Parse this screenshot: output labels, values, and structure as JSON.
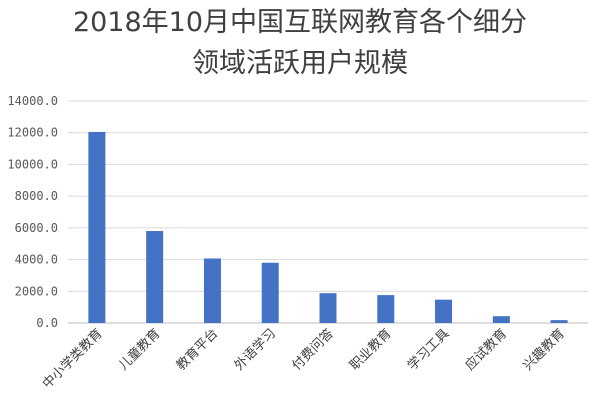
{
  "chart_data": {
    "type": "bar",
    "title_line1": "2018年10月中国互联网教育各个细分",
    "title_line2": "领域活跃用户规模",
    "categories": [
      "中小学类教育",
      "儿童教育",
      "教育平台",
      "外语学习",
      "付费问答",
      "职业教育",
      "学习工具",
      "应试教育",
      "兴趣教育"
    ],
    "values": [
      12050,
      5800,
      4070,
      3800,
      1880,
      1760,
      1470,
      430,
      180
    ],
    "yticks": [
      "0.0",
      "2000.0",
      "4000.0",
      "6000.0",
      "8000.0",
      "10000.0",
      "12000.0",
      "14000.0"
    ],
    "ylim": [
      0,
      14000
    ],
    "grid": true,
    "legend": "none",
    "colors": {
      "bar": "#4472C4",
      "grid": "#D9D9D9",
      "axis": "#BFBFBF"
    }
  }
}
